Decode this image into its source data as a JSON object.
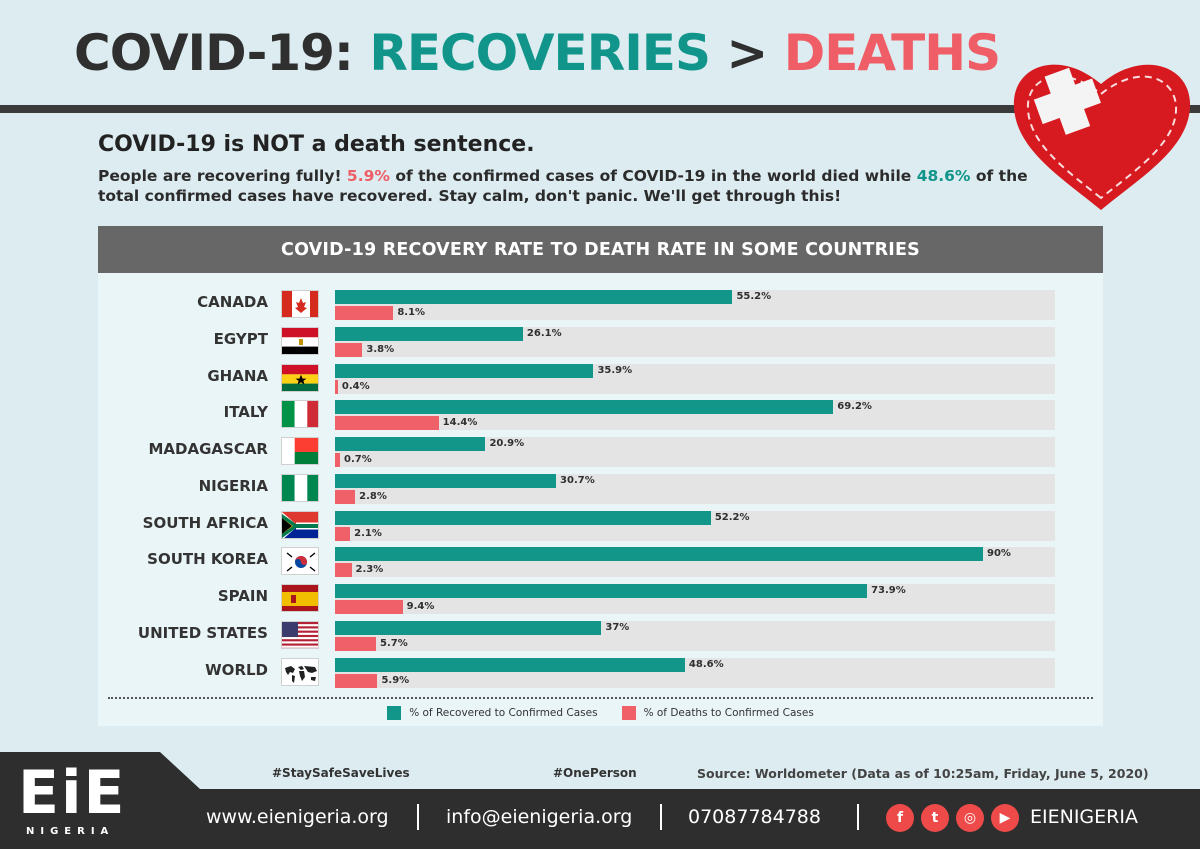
{
  "title": {
    "part1": "COVID-19: ",
    "part2": "RECOVERIES",
    "part3": " > ",
    "part4": "DEATHS"
  },
  "subtitle": "COVID-19 is NOT a death sentence.",
  "intro": {
    "s1": "People are recovering fully! ",
    "death_pct": "5.9%",
    "s2": " of the confirmed cases of COVID-19 in the world died while ",
    "rec_pct": "48.6%",
    "s3": " of the total confirmed cases have recovered. Stay calm, don't panic. We'll get through this!"
  },
  "chart_data": {
    "type": "bar",
    "title": "COVID-19 RECOVERY RATE TO DEATH RATE IN SOME COUNTRIES",
    "categories": [
      "CANADA",
      "EGYPT",
      "GHANA",
      "ITALY",
      "MADAGASCAR",
      "NIGERIA",
      "SOUTH AFRICA",
      "SOUTH KOREA",
      "SPAIN",
      "UNITED STATES",
      "WORLD"
    ],
    "series": [
      {
        "name": "% of Recovered to Confirmed Cases",
        "color": "#12968a",
        "values": [
          55.2,
          26.1,
          35.9,
          69.2,
          20.9,
          30.7,
          52.2,
          90,
          73.9,
          37,
          48.6
        ]
      },
      {
        "name": "% of Deaths to Confirmed Cases",
        "color": "#ef6069",
        "values": [
          8.1,
          3.8,
          0.4,
          14.4,
          0.7,
          2.8,
          2.1,
          2.3,
          9.4,
          5.7,
          5.9
        ]
      }
    ],
    "xlim": [
      0,
      100
    ],
    "legend": "bottom"
  },
  "flags": [
    "canada-flag",
    "egypt-flag",
    "ghana-flag",
    "italy-flag",
    "madagascar-flag",
    "nigeria-flag",
    "south-africa-flag",
    "south-korea-flag",
    "spain-flag",
    "usa-flag",
    "world-map-icon"
  ],
  "footer": {
    "hashtag1": "#StaySafeSaveLives",
    "hashtag2": "#OnePerson",
    "source": "Source: Worldometer (Data as of 10:25am, Friday, June 5, 2020)",
    "website": "www.eienigeria.org",
    "email": "info@eienigeria.org",
    "phone": "07087784788",
    "brand": "EIENIGERIA",
    "logo": "EiE",
    "logo_sub": "NIGERIA"
  }
}
